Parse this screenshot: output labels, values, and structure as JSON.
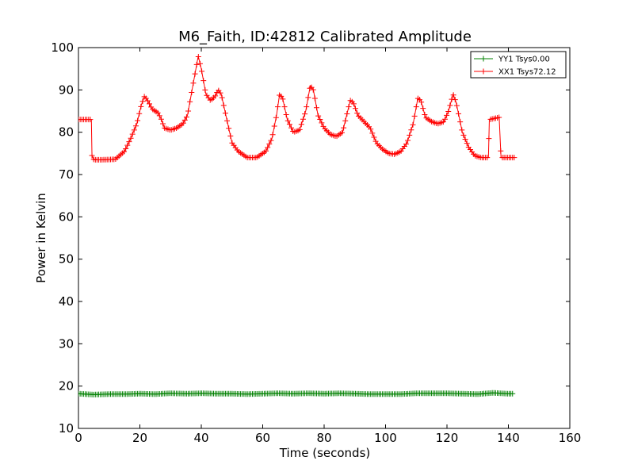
{
  "chart_data": {
    "type": "line",
    "title": "M6_Faith, ID:42812 Calibrated Amplitude",
    "xlabel": "Time (seconds)",
    "ylabel": "Power in Kelvin",
    "xlim": [
      0,
      160
    ],
    "ylim": [
      10,
      100
    ],
    "xticks": [
      0,
      20,
      40,
      60,
      80,
      100,
      120,
      140,
      160
    ],
    "yticks": [
      10,
      20,
      30,
      40,
      50,
      60,
      70,
      80,
      90,
      100
    ],
    "grid": false,
    "legend_position": "top-right",
    "marker": "+",
    "series": [
      {
        "name": "YY1 Tsys0.00",
        "color": "#008000",
        "points": [
          [
            0,
            18.2
          ],
          [
            5,
            18.0
          ],
          [
            10,
            18.1
          ],
          [
            15,
            18.1
          ],
          [
            20,
            18.2
          ],
          [
            25,
            18.1
          ],
          [
            30,
            18.3
          ],
          [
            35,
            18.2
          ],
          [
            40,
            18.3
          ],
          [
            45,
            18.2
          ],
          [
            50,
            18.2
          ],
          [
            55,
            18.1
          ],
          [
            60,
            18.2
          ],
          [
            65,
            18.3
          ],
          [
            70,
            18.2
          ],
          [
            75,
            18.3
          ],
          [
            80,
            18.2
          ],
          [
            85,
            18.3
          ],
          [
            90,
            18.2
          ],
          [
            95,
            18.1
          ],
          [
            100,
            18.1
          ],
          [
            105,
            18.1
          ],
          [
            110,
            18.3
          ],
          [
            115,
            18.3
          ],
          [
            120,
            18.3
          ],
          [
            125,
            18.2
          ],
          [
            130,
            18.1
          ],
          [
            135,
            18.4
          ],
          [
            140,
            18.2
          ],
          [
            141.5,
            18.2
          ]
        ]
      },
      {
        "name": "XX1 Tsys72.12",
        "color": "#ff0000",
        "points": [
          [
            0,
            83
          ],
          [
            4.2,
            83
          ],
          [
            4.4,
            74.5
          ],
          [
            5,
            73.5
          ],
          [
            8,
            73.5
          ],
          [
            12,
            73.6
          ],
          [
            15,
            75.5
          ],
          [
            17,
            78.5
          ],
          [
            19,
            82
          ],
          [
            20.5,
            86.5
          ],
          [
            21.5,
            88.5
          ],
          [
            22.5,
            87.5
          ],
          [
            24,
            85.5
          ],
          [
            26,
            84.5
          ],
          [
            27,
            83
          ],
          [
            28,
            81
          ],
          [
            30,
            80.5
          ],
          [
            32,
            81
          ],
          [
            34,
            82
          ],
          [
            35.5,
            84
          ],
          [
            37,
            90
          ],
          [
            38.5,
            96
          ],
          [
            39,
            98
          ],
          [
            40,
            95
          ],
          [
            41.5,
            89
          ],
          [
            43,
            87.5
          ],
          [
            44.5,
            88.5
          ],
          [
            45.5,
            90
          ],
          [
            46.5,
            89
          ],
          [
            48,
            84
          ],
          [
            50,
            77.5
          ],
          [
            52,
            75.5
          ],
          [
            55,
            74
          ],
          [
            58,
            74
          ],
          [
            61,
            75.5
          ],
          [
            63,
            78.5
          ],
          [
            64.5,
            84
          ],
          [
            65.5,
            89
          ],
          [
            66.5,
            88
          ],
          [
            68,
            83
          ],
          [
            70,
            80
          ],
          [
            72,
            80.5
          ],
          [
            74,
            85
          ],
          [
            75.5,
            91
          ],
          [
            76.5,
            90
          ],
          [
            78,
            84
          ],
          [
            80,
            81
          ],
          [
            82,
            79.5
          ],
          [
            84,
            79
          ],
          [
            86,
            80
          ],
          [
            87,
            83
          ],
          [
            88.5,
            87.5
          ],
          [
            89.5,
            87
          ],
          [
            91,
            84
          ],
          [
            93,
            82.5
          ],
          [
            95,
            81
          ],
          [
            97,
            77.5
          ],
          [
            99,
            76
          ],
          [
            101,
            75
          ],
          [
            103,
            74.8
          ],
          [
            105,
            75.5
          ],
          [
            107,
            77.5
          ],
          [
            109,
            82
          ],
          [
            110.5,
            88
          ],
          [
            111.5,
            87.5
          ],
          [
            113,
            83.5
          ],
          [
            115,
            82.5
          ],
          [
            117,
            82
          ],
          [
            119,
            82.5
          ],
          [
            120.5,
            85
          ],
          [
            122,
            89
          ],
          [
            123,
            87
          ],
          [
            125,
            80
          ],
          [
            127,
            76.5
          ],
          [
            129,
            74.5
          ],
          [
            131,
            74
          ],
          [
            133,
            74
          ],
          [
            133.5,
            74
          ],
          [
            133.8,
            83
          ],
          [
            137,
            83.5
          ],
          [
            137.6,
            74
          ],
          [
            142,
            74
          ]
        ]
      }
    ]
  }
}
